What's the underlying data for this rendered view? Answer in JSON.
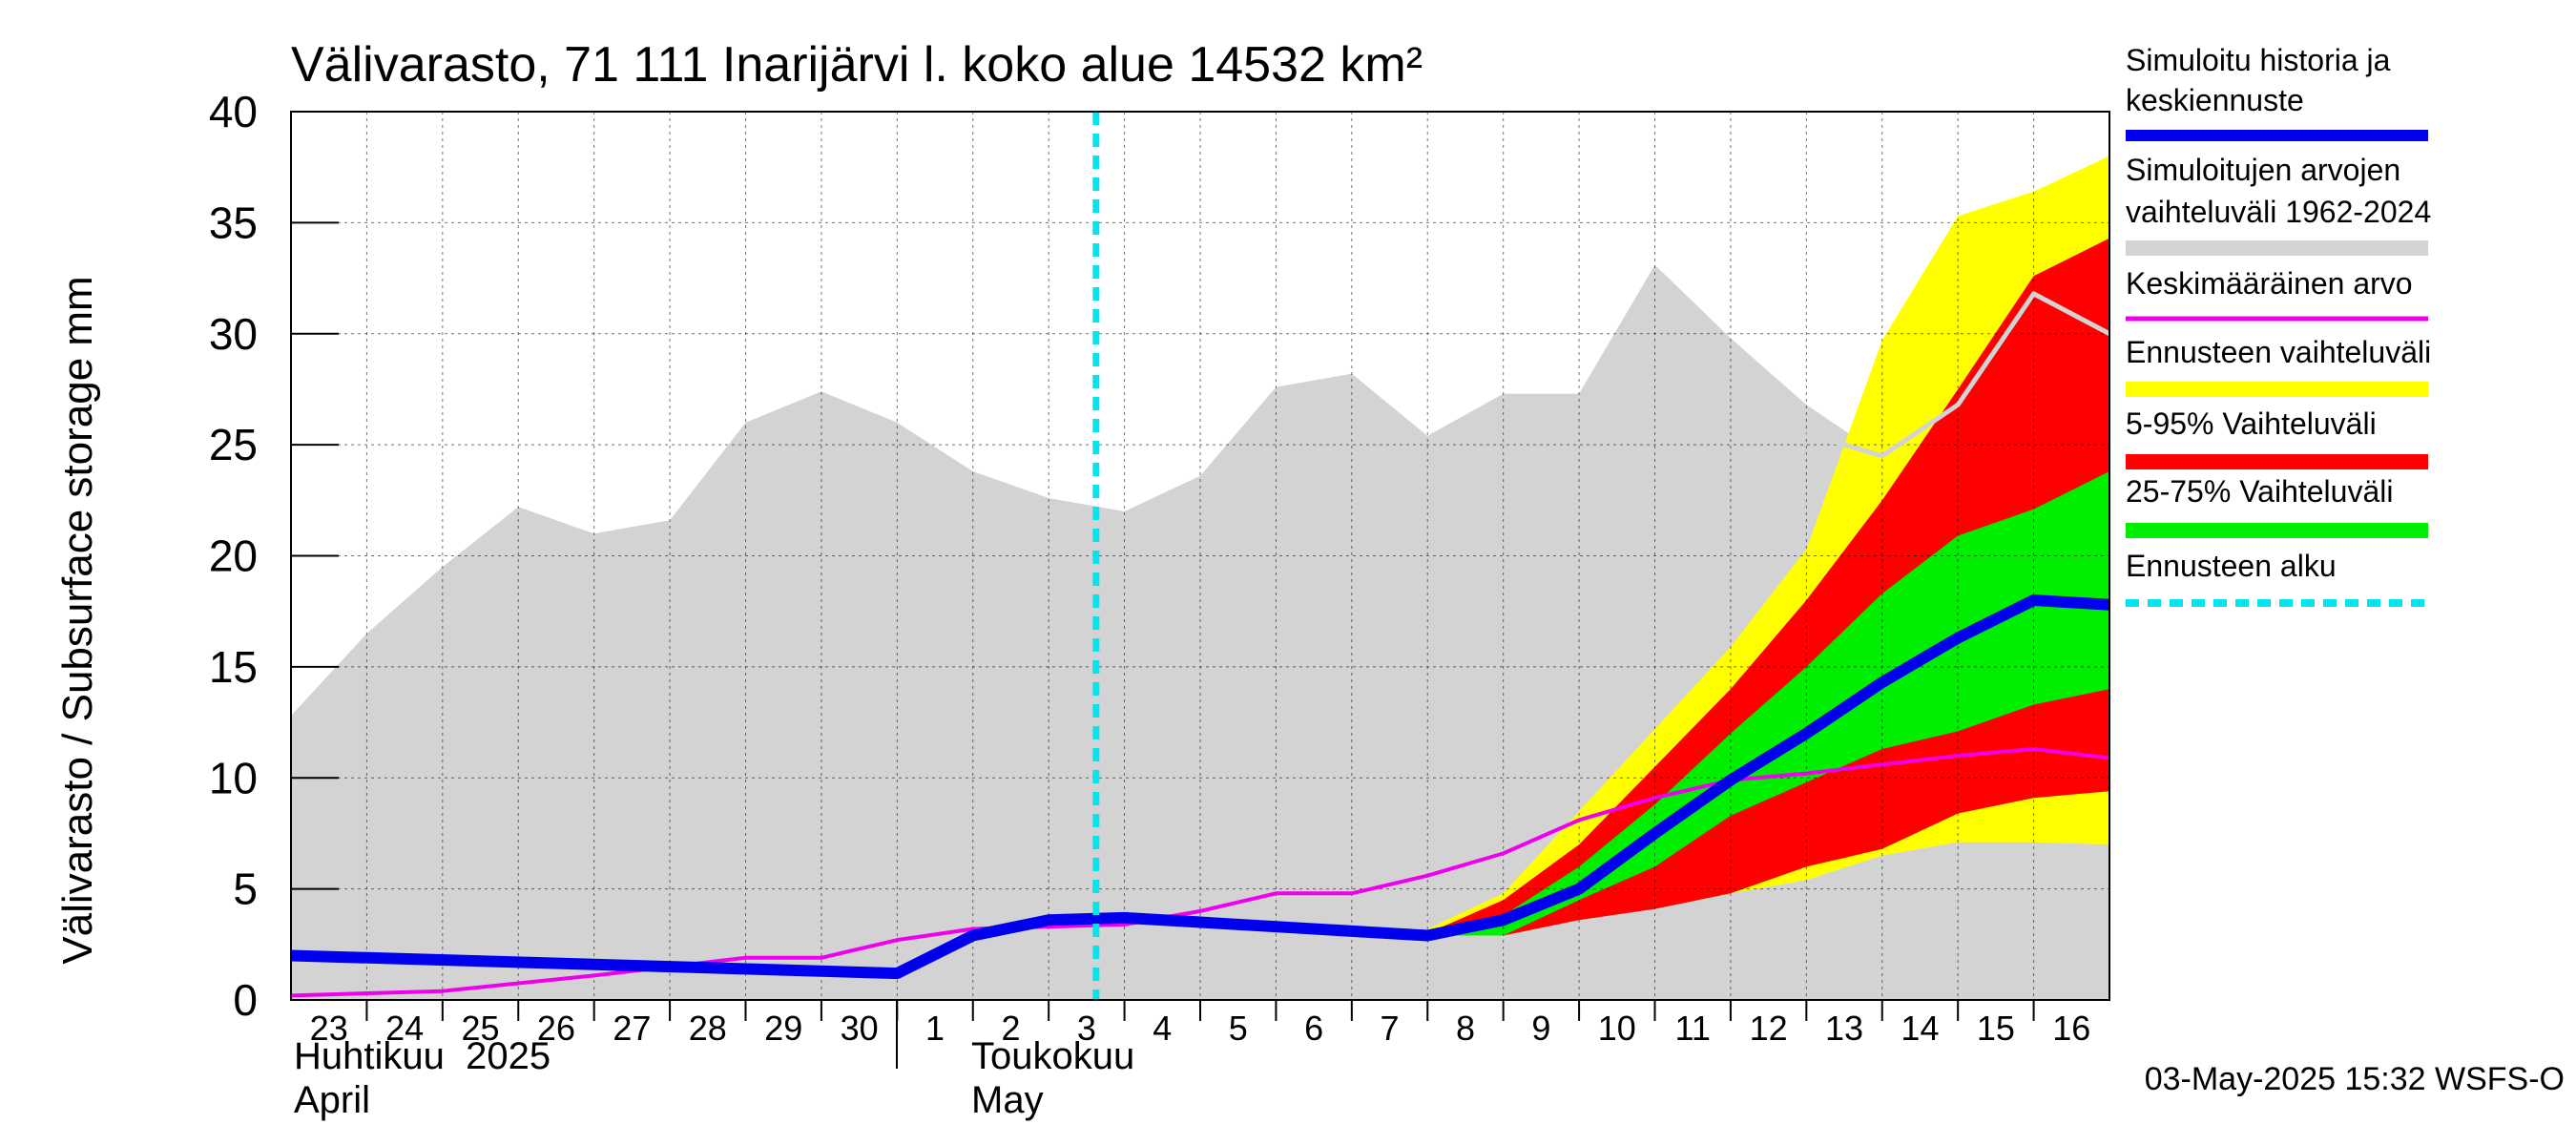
{
  "chart_data": {
    "type": "area",
    "title": "Välivarasto, 71 111 Inarijärvi l. koko alue 14532 km²",
    "ylabel": "Välivarasto / Subsurface storage  mm",
    "ylim": [
      0,
      40
    ],
    "yticks": [
      "0",
      "5",
      "10",
      "15",
      "20",
      "25",
      "30",
      "35",
      "40"
    ],
    "day_labels": [
      "23",
      "24",
      "25",
      "26",
      "27",
      "28",
      "29",
      "30",
      "1",
      "2",
      "3",
      "4",
      "5",
      "6",
      "7",
      "8",
      "9",
      "10",
      "11",
      "12",
      "13",
      "14",
      "15",
      "16"
    ],
    "months": [
      {
        "fi": "Huhtikuu  2025",
        "en": "April"
      },
      {
        "fi": "Toukokuu",
        "en": "May"
      }
    ],
    "forecast_start": "2025-05-03",
    "footer": "03-May-2025 15:32 WSFS-O",
    "colors": {
      "history": "#d3d3d3",
      "full_range": "#ffff00",
      "range_5_95": "#ff0000",
      "range_25_75": "#00ee00",
      "median": "#0000ee",
      "mean": "#ee00ee",
      "forecast_line": "#00e5ee"
    },
    "legend": [
      {
        "label": [
          "Simuloitu historia ja",
          "keskiennuste"
        ],
        "color": "#0000ee",
        "style": "thick"
      },
      {
        "label": [
          "Simuloitujen arvojen",
          "vaihteluväli 1962-2024"
        ],
        "color": "#d3d3d3",
        "style": "band"
      },
      {
        "label": [
          "Keskimääräinen arvo"
        ],
        "color": "#ee00ee",
        "style": "thin"
      },
      {
        "label": [
          "Ennusteen vaihteluväli"
        ],
        "color": "#ffff00",
        "style": "band"
      },
      {
        "label": [
          "5-95% Vaihteluväli"
        ],
        "color": "#ff0000",
        "style": "band"
      },
      {
        "label": [
          "25-75% Vaihteluväli"
        ],
        "color": "#00ee00",
        "style": "band"
      },
      {
        "label": [
          "Ennusteen alku"
        ],
        "color": "#00e5ee",
        "style": "dashed"
      }
    ],
    "series": {
      "history_range": {
        "x": [
          0,
          1,
          2,
          3,
          4,
          5,
          6,
          7,
          8,
          9,
          10,
          11,
          12,
          13,
          14,
          15,
          16,
          17,
          18,
          19,
          20,
          21,
          22,
          23,
          24
        ],
        "upper": [
          12.8,
          16.5,
          19.5,
          22.2,
          21.0,
          21.6,
          26.0,
          27.4,
          26.0,
          23.8,
          22.6,
          22.0,
          23.6,
          27.6,
          28.2,
          25.4,
          27.3,
          27.3,
          33.1,
          29.8,
          26.8,
          24.5,
          26.8,
          31.8,
          30.0
        ],
        "lower": [
          0,
          0,
          0,
          0,
          0,
          0,
          0,
          0,
          0,
          0,
          0,
          0,
          0,
          0,
          0,
          0,
          0,
          0,
          0,
          0,
          0,
          0,
          0,
          0,
          0
        ]
      },
      "forecast_full": {
        "x": [
          15,
          16,
          17,
          18,
          19,
          20,
          21,
          22,
          23,
          24
        ],
        "upper": [
          3.2,
          4.8,
          8.5,
          12.2,
          15.9,
          20.3,
          29.7,
          35.3,
          36.4,
          38.0
        ],
        "lower": [
          2.9,
          2.9,
          3.7,
          4.1,
          4.8,
          5.4,
          6.5,
          7.1,
          7.1,
          7.0
        ]
      },
      "forecast_5_95": {
        "x": [
          15,
          16,
          17,
          18,
          19,
          20,
          21,
          22,
          23,
          24
        ],
        "upper": [
          3.0,
          4.5,
          7.0,
          10.5,
          14.0,
          18.0,
          22.5,
          27.5,
          32.6,
          34.3
        ],
        "lower": [
          2.9,
          2.9,
          3.6,
          4.1,
          4.8,
          6.0,
          6.8,
          8.4,
          9.1,
          9.4
        ]
      },
      "forecast_25_75": {
        "x": [
          15,
          16,
          17,
          18,
          19,
          20,
          21,
          22,
          23,
          24
        ],
        "upper": [
          2.9,
          3.8,
          6.0,
          8.8,
          12.0,
          15.0,
          18.3,
          20.9,
          22.1,
          23.8
        ],
        "lower": [
          2.9,
          2.9,
          4.5,
          6.0,
          8.3,
          9.8,
          11.3,
          12.1,
          13.3,
          14.0
        ]
      },
      "median": {
        "x": [
          0,
          8,
          9,
          10,
          11,
          12,
          13,
          14,
          15,
          16,
          17,
          18,
          19,
          20,
          21,
          22,
          23,
          24
        ],
        "y": [
          2.0,
          1.2,
          2.9,
          3.6,
          3.7,
          3.5,
          3.3,
          3.1,
          2.9,
          3.6,
          5.0,
          7.5,
          9.9,
          12.0,
          14.3,
          16.3,
          18.0,
          17.8
        ]
      },
      "mean": {
        "x": [
          0,
          2,
          4,
          6,
          7,
          8,
          9,
          10,
          11,
          12,
          13,
          14,
          15,
          16,
          17,
          18,
          19,
          20,
          21,
          22,
          23,
          24
        ],
        "y": [
          0.2,
          0.4,
          1.1,
          1.9,
          1.9,
          2.7,
          3.2,
          3.3,
          3.4,
          4.0,
          4.8,
          4.8,
          5.6,
          6.6,
          8.1,
          9.1,
          9.9,
          10.2,
          10.6,
          11.0,
          11.3,
          10.9
        ]
      },
      "history_median_segment": {
        "x": [
          20,
          21,
          22,
          23,
          24
        ],
        "y": [
          25.5,
          24.5,
          26.8,
          31.8,
          30.0
        ]
      }
    }
  }
}
